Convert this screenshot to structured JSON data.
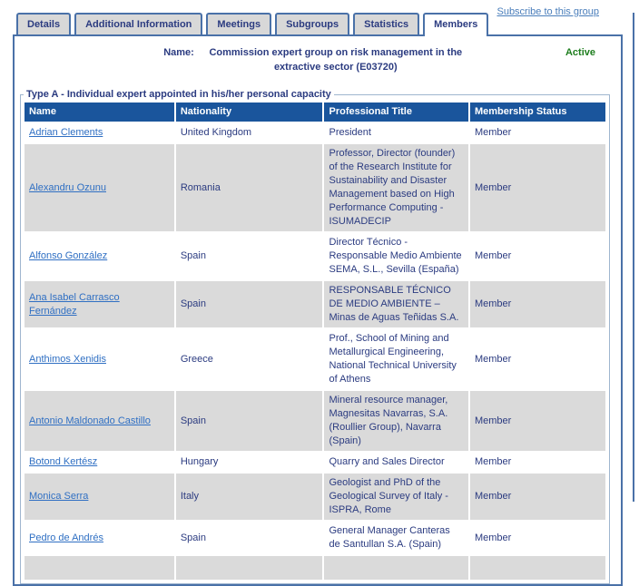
{
  "page": {
    "subscribe_link": "Subscribe to this group"
  },
  "tabs": [
    {
      "label": "Details",
      "active": false
    },
    {
      "label": "Additional Information",
      "active": false
    },
    {
      "label": "Meetings",
      "active": false
    },
    {
      "label": "Subgroups",
      "active": false
    },
    {
      "label": "Statistics",
      "active": false
    },
    {
      "label": "Members",
      "active": true
    }
  ],
  "group": {
    "name_label": "Name:",
    "name_value": "Commission expert group on risk management in the extractive sector (E03720)",
    "status": "Active"
  },
  "section": {
    "legend": "Type A - Individual expert appointed in his/her personal capacity"
  },
  "table": {
    "columns": [
      "Name",
      "Nationality",
      "Professional Title",
      "Membership Status"
    ],
    "rows": [
      {
        "name": "Adrian Clements",
        "nationality": "United Kingdom",
        "professional_title": "President",
        "membership_status": "Member"
      },
      {
        "name": "Alexandru Ozunu",
        "nationality": "Romania",
        "professional_title": "Professor, Director (founder) of the Research Institute for Sustainability and Disaster Management based on High Performance Computing - ISUMADECIP",
        "membership_status": "Member"
      },
      {
        "name": "Alfonso González",
        "nationality": "Spain",
        "professional_title": "Director Técnico - Responsable Medio Ambiente SEMA, S.L., Sevilla (España)",
        "membership_status": "Member"
      },
      {
        "name": "Ana Isabel Carrasco Fernández",
        "nationality": "Spain",
        "professional_title": "RESPONSABLE TÉCNICO DE MEDIO AMBIENTE – Minas de Aguas Teñidas S.A.",
        "membership_status": "Member"
      },
      {
        "name": "Anthimos Xenidis",
        "nationality": "Greece",
        "professional_title": "Prof., School of Mining and Metallurgical Engineering, National Technical University of Athens",
        "membership_status": "Member"
      },
      {
        "name": "Antonio Maldonado Castillo",
        "nationality": "Spain",
        "professional_title": "Mineral resource manager, Magnesitas Navarras, S.A. (Roullier Group), Navarra (Spain)",
        "membership_status": "Member"
      },
      {
        "name": "Botond Kertész",
        "nationality": "Hungary",
        "professional_title": "Quarry and Sales Director",
        "membership_status": "Member"
      },
      {
        "name": "Monica Serra",
        "nationality": "Italy",
        "professional_title": "Geologist and PhD of the Geological Survey of Italy - ISPRA, Rome",
        "membership_status": "Member"
      },
      {
        "name": "Pedro de Andrés",
        "nationality": "Spain",
        "professional_title": "General Manager Canteras de Santullan S.A. (Spain)",
        "membership_status": "Member"
      },
      {
        "name": "",
        "nationality": "",
        "professional_title": "",
        "membership_status": ""
      }
    ]
  },
  "colors": {
    "table_header_bg": "#1a559c",
    "row_alt_bg": "#dadada",
    "border_blue": "#4a71a8",
    "fieldset_border": "#9fb6cf",
    "text_navy": "#2b3b80",
    "link_blue": "#2f6fc3",
    "status_green": "#1e7e1e",
    "tab_bg": "#d8d8d8"
  }
}
